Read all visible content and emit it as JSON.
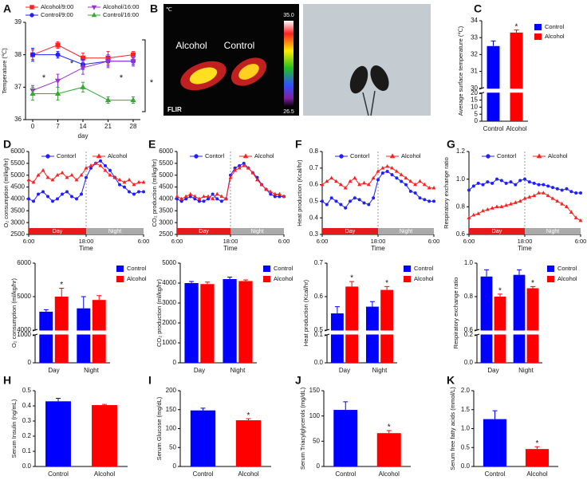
{
  "chart_data": [
    {
      "type": "line",
      "panel": "A",
      "y_label": "Temperature (℃)",
      "x_label": "day",
      "x": [
        0,
        7,
        14,
        21,
        28
      ],
      "xlim": [
        -2,
        30
      ],
      "xticks": [
        0,
        7,
        14,
        21,
        28
      ],
      "ylim": [
        36,
        39
      ],
      "yticks": [
        36,
        37,
        38,
        39
      ],
      "series": [
        {
          "name": "Alcohol/9:00",
          "color": "#ff2020",
          "marker": "square",
          "values": [
            38.0,
            38.3,
            37.9,
            37.9,
            38.0
          ],
          "errors": [
            0.15,
            0.1,
            0.15,
            0.2,
            0.1
          ]
        },
        {
          "name": "Control/9:00",
          "color": "#2020ff",
          "marker": "circle",
          "values": [
            38.0,
            38.0,
            37.7,
            37.8,
            37.8
          ],
          "errors": [
            0.2,
            0.1,
            0.15,
            0.15,
            0.1
          ]
        },
        {
          "name": "Alcohol/16:00",
          "color": "#9933cc",
          "marker": "triangle-down",
          "values": [
            36.9,
            37.2,
            37.6,
            37.8,
            37.8
          ],
          "errors": [
            0.15,
            0.2,
            0.2,
            0.2,
            0.15
          ]
        },
        {
          "name": "Control/16:00",
          "color": "#33aa33",
          "marker": "triangle",
          "values": [
            36.8,
            36.8,
            37.0,
            36.6,
            36.6
          ],
          "errors": [
            0.2,
            0.2,
            0.15,
            0.1,
            0.1
          ]
        }
      ],
      "annotations": [
        {
          "text": "*"
        },
        {
          "text": "*"
        },
        {
          "text": "*"
        },
        {
          "text": "*"
        }
      ]
    },
    {
      "type": "image",
      "panel": "B",
      "labels": [
        "Alcohol",
        "Control"
      ],
      "unit": "℃",
      "scale": [
        "35.0",
        "26.5"
      ],
      "brand": "FLIR"
    },
    {
      "type": "bar",
      "panel": "C",
      "y_label": "Average surface temperature (℃)",
      "categories": [
        "Control",
        "Alcohol"
      ],
      "values": [
        32.5,
        33.3
      ],
      "errors": [
        0.3,
        0.15
      ],
      "colors": [
        "#0000ff",
        "#ff0000"
      ],
      "legend": true,
      "ylim": [
        0,
        34
      ],
      "ybreak": [
        20,
        30
      ],
      "yticks": [
        0,
        5,
        10,
        15,
        20,
        30,
        31,
        32,
        33,
        34
      ],
      "annotations": [
        {
          "text": "*",
          "index": 1
        }
      ]
    },
    {
      "type": "line",
      "panel": "D",
      "y_label": "O₂ consumption (ml/kg/hr)",
      "x_label": "Time",
      "x": [
        0,
        1,
        2,
        3,
        4,
        5,
        6,
        7,
        8,
        9,
        10,
        11,
        12,
        13,
        14,
        15,
        16,
        17,
        18,
        19,
        20,
        21,
        22,
        23,
        24
      ],
      "xlim": [
        0,
        24
      ],
      "xticks": [
        {
          "value": 0,
          "label": "6:00"
        },
        {
          "value": 12,
          "label": "18:00"
        },
        {
          "value": 24,
          "label": "6:00"
        }
      ],
      "ylim": [
        2500,
        6000
      ],
      "yticks": [
        2500,
        3000,
        3500,
        4000,
        4500,
        5000,
        5500,
        6000
      ],
      "phases": [
        {
          "label": "Day",
          "range": [
            0,
            12
          ],
          "color": "#e41a1c"
        },
        {
          "label": "Night",
          "range": [
            12,
            24
          ],
          "color": "#aaaaaa"
        }
      ],
      "series": [
        {
          "name": "Contorl",
          "color": "#2020ff",
          "marker": "circle",
          "values": [
            4000,
            3900,
            4200,
            4300,
            4100,
            3900,
            4000,
            4200,
            4300,
            4100,
            4000,
            4200,
            4900,
            5300,
            5500,
            5600,
            5400,
            5200,
            4900,
            4600,
            4500,
            4300,
            4200,
            4300,
            4300
          ]
        },
        {
          "name": "Alcohol",
          "color": "#ff2020",
          "marker": "triangle",
          "values": [
            4800,
            4700,
            5000,
            5200,
            4900,
            4800,
            5000,
            5100,
            4900,
            5000,
            4800,
            5000,
            5300,
            5400,
            5500,
            5400,
            5200,
            5000,
            4900,
            4800,
            4700,
            4800,
            4600,
            4700,
            4700
          ]
        }
      ]
    },
    {
      "type": "line",
      "panel": "E",
      "y_label": "CO₂ production (ml/kg/hr)",
      "x_label": "Time",
      "x": [
        0,
        1,
        2,
        3,
        4,
        5,
        6,
        7,
        8,
        9,
        10,
        11,
        12,
        13,
        14,
        15,
        16,
        17,
        18,
        19,
        20,
        21,
        22,
        23,
        24
      ],
      "xlim": [
        0,
        24
      ],
      "xticks": [
        {
          "value": 0,
          "label": "6:00"
        },
        {
          "value": 12,
          "label": "18:00"
        },
        {
          "value": 24,
          "label": "6:00"
        }
      ],
      "ylim": [
        2500,
        6000
      ],
      "yticks": [
        2500,
        3000,
        3500,
        4000,
        4500,
        5000,
        5500,
        6000
      ],
      "phases": [
        {
          "label": "Day",
          "range": [
            0,
            12
          ],
          "color": "#e41a1c"
        },
        {
          "label": "Night",
          "range": [
            12,
            24
          ],
          "color": "#aaaaaa"
        }
      ],
      "series": [
        {
          "name": "Contorl",
          "color": "#2020ff",
          "marker": "circle",
          "values": [
            4000,
            3900,
            4000,
            4100,
            4000,
            3900,
            3900,
            4000,
            4200,
            4000,
            3900,
            4000,
            5000,
            5300,
            5400,
            5500,
            5300,
            5100,
            4900,
            4600,
            4400,
            4200,
            4100,
            4100,
            4100
          ]
        },
        {
          "name": "Alcohol",
          "color": "#ff2020",
          "marker": "triangle",
          "values": [
            4100,
            4000,
            4100,
            4200,
            4100,
            4000,
            4100,
            4100,
            4000,
            4200,
            4100,
            4000,
            4900,
            5200,
            5300,
            5400,
            5300,
            5100,
            4800,
            4600,
            4400,
            4300,
            4200,
            4200,
            4100
          ]
        }
      ]
    },
    {
      "type": "line",
      "panel": "F",
      "y_label": "Heat production (Kcal/hr)",
      "x_label": "Time",
      "x": [
        0,
        1,
        2,
        3,
        4,
        5,
        6,
        7,
        8,
        9,
        10,
        11,
        12,
        13,
        14,
        15,
        16,
        17,
        18,
        19,
        20,
        21,
        22,
        23,
        24
      ],
      "xlim": [
        0,
        24
      ],
      "xticks": [
        {
          "value": 0,
          "label": "6:00"
        },
        {
          "value": 12,
          "label": "18:00"
        },
        {
          "value": 24,
          "label": "6:00"
        }
      ],
      "ylim": [
        0.3,
        0.8
      ],
      "yticks": [
        0.3,
        0.4,
        0.5,
        0.6,
        0.7,
        0.8
      ],
      "phases": [
        {
          "label": "Day",
          "range": [
            0,
            12
          ],
          "color": "#e41a1c"
        },
        {
          "label": "Night",
          "range": [
            12,
            24
          ],
          "color": "#aaaaaa"
        }
      ],
      "series": [
        {
          "name": "Contorl",
          "color": "#2020ff",
          "marker": "circle",
          "values": [
            0.5,
            0.48,
            0.52,
            0.5,
            0.48,
            0.46,
            0.5,
            0.52,
            0.51,
            0.49,
            0.48,
            0.52,
            0.63,
            0.67,
            0.68,
            0.66,
            0.64,
            0.62,
            0.6,
            0.56,
            0.55,
            0.52,
            0.51,
            0.5,
            0.5
          ]
        },
        {
          "name": "Alcohol",
          "color": "#ff2020",
          "marker": "triangle",
          "values": [
            0.6,
            0.62,
            0.64,
            0.62,
            0.6,
            0.58,
            0.62,
            0.64,
            0.6,
            0.61,
            0.6,
            0.64,
            0.68,
            0.7,
            0.71,
            0.7,
            0.68,
            0.66,
            0.64,
            0.62,
            0.6,
            0.62,
            0.6,
            0.58,
            0.58
          ]
        }
      ]
    },
    {
      "type": "line",
      "panel": "G",
      "y_label": "Respiratory exchange ratio",
      "x_label": "Time",
      "x": [
        0,
        1,
        2,
        3,
        4,
        5,
        6,
        7,
        8,
        9,
        10,
        11,
        12,
        13,
        14,
        15,
        16,
        17,
        18,
        19,
        20,
        21,
        22,
        23,
        24
      ],
      "xlim": [
        0,
        24
      ],
      "xticks": [
        {
          "value": 0,
          "label": "6:00"
        },
        {
          "value": 12,
          "label": "18:00"
        },
        {
          "value": 24,
          "label": "6:00"
        }
      ],
      "ylim": [
        0.6,
        1.2
      ],
      "yticks": [
        0.6,
        0.8,
        {
          "value": 1,
          "label": "1.0"
        },
        1.2
      ],
      "phases": [
        {
          "label": "Day",
          "range": [
            0,
            12
          ],
          "color": "#e41a1c"
        },
        {
          "label": "Night",
          "range": [
            12,
            24
          ],
          "color": "#aaaaaa"
        }
      ],
      "series": [
        {
          "name": "Contorl",
          "color": "#2020ff",
          "marker": "circle",
          "values": [
            0.92,
            0.95,
            0.97,
            0.96,
            0.98,
            0.97,
            1.0,
            0.99,
            0.97,
            0.98,
            0.96,
            0.99,
            1.0,
            0.98,
            0.97,
            0.96,
            0.96,
            0.95,
            0.94,
            0.93,
            0.92,
            0.93,
            0.91,
            0.9,
            0.9
          ]
        },
        {
          "name": "Alcohol",
          "color": "#ff2020",
          "marker": "triangle",
          "values": [
            0.72,
            0.74,
            0.75,
            0.77,
            0.78,
            0.79,
            0.8,
            0.8,
            0.81,
            0.82,
            0.83,
            0.84,
            0.86,
            0.87,
            0.88,
            0.9,
            0.9,
            0.88,
            0.86,
            0.84,
            0.82,
            0.8,
            0.76,
            0.72,
            0.7
          ]
        }
      ]
    },
    {
      "type": "bar",
      "y_label": "O₂ consumption (ml/kg/hr)",
      "categories": [
        "Day",
        "Night"
      ],
      "series": [
        {
          "name": "Control",
          "color": "#0000ff",
          "values": [
            4550,
            4650
          ],
          "errors": [
            60,
            350
          ]
        },
        {
          "name": "Alcohol",
          "color": "#ff0000",
          "values": [
            5000,
            4900
          ],
          "errors": [
            250,
            130
          ]
        }
      ],
      "legend": true,
      "ylim": [
        0,
        6000
      ],
      "ybreak": [
        1000,
        4000
      ],
      "yticks": [
        0,
        1000,
        4000,
        5000,
        6000
      ],
      "annotations": [
        {
          "text": "*",
          "series": 1,
          "index": 0
        }
      ]
    },
    {
      "type": "bar",
      "y_label": "CO₂ production (ml/kg/hr)",
      "categories": [
        "Day",
        "Night"
      ],
      "series": [
        {
          "name": "Control",
          "color": "#0000ff",
          "values": [
            4000,
            4200
          ],
          "errors": [
            80,
            100
          ]
        },
        {
          "name": "Alcohol",
          "color": "#ff0000",
          "values": [
            3950,
            4100
          ],
          "errors": [
            100,
            60
          ]
        }
      ],
      "legend": true,
      "ylim": [
        0,
        5000
      ],
      "yticks": [
        0,
        1000,
        2000,
        3000,
        4000,
        5000
      ]
    },
    {
      "type": "bar",
      "y_label": "Heat production (Kcal/hr)",
      "categories": [
        "Day",
        "Night"
      ],
      "series": [
        {
          "name": "Control",
          "color": "#0000ff",
          "values": [
            0.55,
            0.57
          ],
          "errors": [
            0.02,
            0.015
          ]
        },
        {
          "name": "Alcohol",
          "color": "#ff0000",
          "values": [
            0.63,
            0.62
          ],
          "errors": [
            0.015,
            0.01
          ]
        }
      ],
      "legend": true,
      "ylim": [
        0,
        0.7
      ],
      "ybreak": [
        0.1,
        0.5
      ],
      "yticks": [
        {
          "value": 0,
          "label": "0.0"
        },
        0.1,
        0.5,
        0.6,
        0.7
      ],
      "annotations": [
        {
          "text": "*",
          "series": 1,
          "index": 0
        },
        {
          "text": "*",
          "series": 1,
          "index": 1
        }
      ]
    },
    {
      "type": "bar",
      "y_label": "Respiratory exchange ratio",
      "categories": [
        "Day",
        "Night"
      ],
      "series": [
        {
          "name": "Control",
          "color": "#0000ff",
          "values": [
            0.92,
            0.93
          ],
          "errors": [
            0.04,
            0.03
          ]
        },
        {
          "name": "Alcohol",
          "color": "#ff0000",
          "values": [
            0.8,
            0.85
          ],
          "errors": [
            0.015,
            0.01
          ]
        }
      ],
      "legend": true,
      "ylim": [
        0,
        1
      ],
      "ybreak": [
        0.2,
        0.6
      ],
      "yticks": [
        {
          "value": 0,
          "label": "0.0"
        },
        0.2,
        0.6,
        0.8,
        {
          "value": 1,
          "label": "1.0"
        }
      ],
      "annotations": [
        {
          "text": "*",
          "series": 1,
          "index": 0
        },
        {
          "text": "*",
          "series": 1,
          "index": 1
        }
      ]
    },
    {
      "type": "bar",
      "panel": "H",
      "y_label": "Serum Insulin (ng/mL)",
      "categories": [
        "Control",
        "Alcohol"
      ],
      "values": [
        0.43,
        0.405
      ],
      "errors": [
        0.02,
        0.005
      ],
      "colors": [
        "#0000ff",
        "#ff0000"
      ],
      "ylim": [
        0,
        0.5
      ],
      "yticks": [
        {
          "value": 0,
          "label": "0.0"
        },
        0.1,
        0.2,
        0.3,
        0.4,
        0.5
      ]
    },
    {
      "type": "bar",
      "panel": "I",
      "y_label": "Serum Glucose (mg/dL)",
      "categories": [
        "Control",
        "Alcohol"
      ],
      "values": [
        148,
        122
      ],
      "errors": [
        6,
        4
      ],
      "colors": [
        "#0000ff",
        "#ff0000"
      ],
      "ylim": [
        0,
        200
      ],
      "yticks": [
        0,
        50,
        100,
        150,
        200
      ],
      "annotations": [
        {
          "text": "*",
          "index": 1
        }
      ]
    },
    {
      "type": "bar",
      "panel": "J",
      "y_label": "Serum Triacylglycerols (mg/dL)",
      "categories": [
        "Control",
        "Alcohol"
      ],
      "values": [
        112,
        66
      ],
      "errors": [
        16,
        5
      ],
      "colors": [
        "#0000ff",
        "#ff0000"
      ],
      "ylim": [
        0,
        150
      ],
      "yticks": [
        0,
        50,
        100,
        150
      ],
      "annotations": [
        {
          "text": "*",
          "index": 1
        }
      ]
    },
    {
      "type": "bar",
      "panel": "K",
      "y_label": "Serum free fatty acids (mmol/L)",
      "categories": [
        "Control",
        "Alcohol"
      ],
      "values": [
        1.25,
        0.46
      ],
      "errors": [
        0.22,
        0.06
      ],
      "colors": [
        "#0000ff",
        "#ff0000"
      ],
      "ylim": [
        0,
        2
      ],
      "yticks": [
        {
          "value": 0,
          "label": "0.0"
        },
        0.5,
        {
          "value": 1,
          "label": "1.0"
        },
        1.5,
        {
          "value": 2,
          "label": "2.0"
        }
      ],
      "annotations": [
        {
          "text": "*",
          "index": 1
        }
      ]
    }
  ]
}
